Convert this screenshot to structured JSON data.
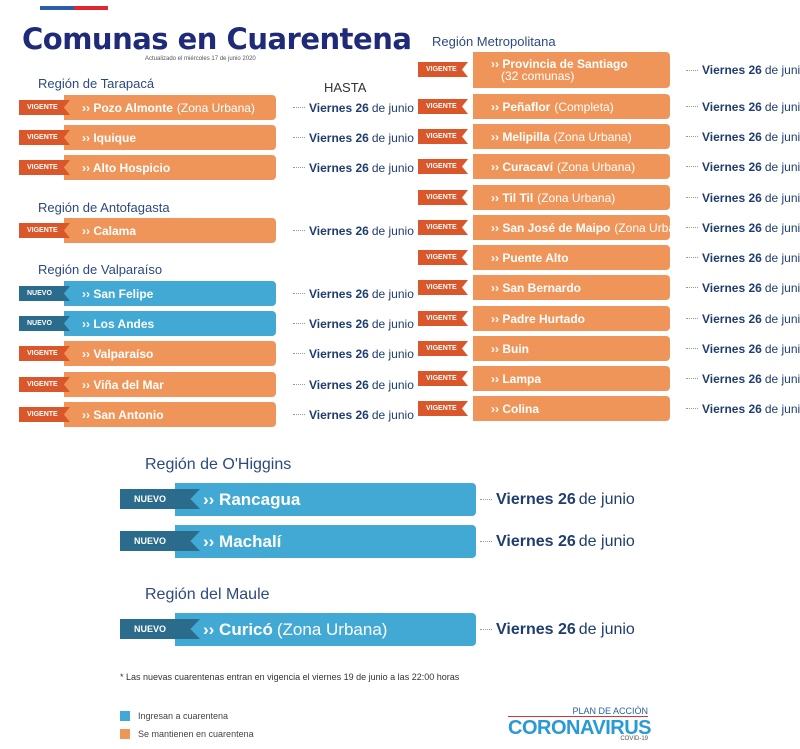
{
  "header": {
    "title": "Comunas en Cuarentena",
    "updated": "Actualizado el miércoles 17 de junio 2020",
    "hasta": "HASTA"
  },
  "colors": {
    "vigente_tag": "#d9572a",
    "vigente_bar": "#f0955a",
    "nuevo_tag": "#2b6b8c",
    "nuevo_bar": "#42a9d4",
    "title": "#1f2a78"
  },
  "regions": [
    {
      "name": "Región de Tarapacá"
    },
    {
      "name": "Región de Antofagasta"
    },
    {
      "name": "Región de Valparaíso"
    },
    {
      "name": "Región Metropolitana"
    },
    {
      "name": "Región de O'Higgins"
    },
    {
      "name": "Región del Maule"
    }
  ],
  "rows": [
    {
      "status": "VIGENTE",
      "commune": "›› Pozo Almonte",
      "detail": "(Zona Urbana)",
      "day": "Viernes 26",
      "month": "de junio"
    },
    {
      "status": "VIGENTE",
      "commune": "›› Iquique",
      "detail": "",
      "day": "Viernes 26",
      "month": "de junio"
    },
    {
      "status": "VIGENTE",
      "commune": "›› Alto Hospicio",
      "detail": "",
      "day": "Viernes 26",
      "month": "de junio"
    },
    {
      "status": "VIGENTE",
      "commune": "›› Calama",
      "detail": "",
      "day": "Viernes 26",
      "month": "de junio"
    },
    {
      "status": "NUEVO",
      "commune": "›› San Felipe",
      "detail": "",
      "day": "Viernes 26",
      "month": "de junio"
    },
    {
      "status": "NUEVO",
      "commune": "›› Los Andes",
      "detail": "",
      "day": "Viernes 26",
      "month": "de junio"
    },
    {
      "status": "VIGENTE",
      "commune": "›› Valparaíso",
      "detail": "",
      "day": "Viernes 26",
      "month": "de junio"
    },
    {
      "status": "VIGENTE",
      "commune": "›› Viña del Mar",
      "detail": "",
      "day": "Viernes 26",
      "month": "de junio"
    },
    {
      "status": "VIGENTE",
      "commune": "›› San Antonio",
      "detail": "",
      "day": "Viernes 26",
      "month": "de junio"
    },
    {
      "status": "VIGENTE",
      "commune": "›› Provincia de Santiago",
      "detail": "(32 comunas)",
      "day": "Viernes 26",
      "month": "de junio"
    },
    {
      "status": "VIGENTE",
      "commune": "›› Peñaflor",
      "detail": "(Completa)",
      "day": "Viernes 26",
      "month": "de junio"
    },
    {
      "status": "VIGENTE",
      "commune": "›› Melipilla",
      "detail": "(Zona Urbana)",
      "day": "Viernes 26",
      "month": "de junio"
    },
    {
      "status": "VIGENTE",
      "commune": "›› Curacaví",
      "detail": "(Zona Urbana)",
      "day": "Viernes 26",
      "month": "de junio"
    },
    {
      "status": "VIGENTE",
      "commune": "›› Til Til",
      "detail": "(Zona Urbana)",
      "day": "Viernes 26",
      "month": "de junio"
    },
    {
      "status": "VIGENTE",
      "commune": "›› San José de Maipo",
      "detail": "(Zona Urbana)",
      "day": "Viernes 26",
      "month": "de junio"
    },
    {
      "status": "VIGENTE",
      "commune": "›› Puente Alto",
      "detail": "",
      "day": "Viernes 26",
      "month": "de junio"
    },
    {
      "status": "VIGENTE",
      "commune": "›› San Bernardo",
      "detail": "",
      "day": "Viernes 26",
      "month": "de junio"
    },
    {
      "status": "VIGENTE",
      "commune": "›› Padre Hurtado",
      "detail": "",
      "day": "Viernes 26",
      "month": "de junio"
    },
    {
      "status": "VIGENTE",
      "commune": "›› Buin",
      "detail": "",
      "day": "Viernes 26",
      "month": "de junio"
    },
    {
      "status": "VIGENTE",
      "commune": "›› Lampa",
      "detail": "",
      "day": "Viernes 26",
      "month": "de junio"
    },
    {
      "status": "VIGENTE",
      "commune": "›› Colina",
      "detail": "",
      "day": "Viernes 26",
      "month": "de junio"
    },
    {
      "status": "NUEVO",
      "commune": "›› Rancagua",
      "detail": "",
      "day": "Viernes 26",
      "month": "de junio"
    },
    {
      "status": "NUEVO",
      "commune": "›› Machalí",
      "detail": "",
      "day": "Viernes 26",
      "month": "de junio"
    },
    {
      "status": "NUEVO",
      "commune": "›› Curicó",
      "detail": "(Zona Urbana)",
      "day": "Viernes 26",
      "month": "de junio"
    }
  ],
  "footer": {
    "note": "* Las nuevas cuarentenas entran en vigencia el viernes 19 de junio a las 22:00 horas",
    "legend_new": "Ingresan a cuarentena",
    "legend_kept": "Se mantienen en cuarentena",
    "logo_top": "PLAN DE ACCIÓN",
    "logo_main": "CORONAVIRUS",
    "logo_sub": "COVID-19"
  }
}
